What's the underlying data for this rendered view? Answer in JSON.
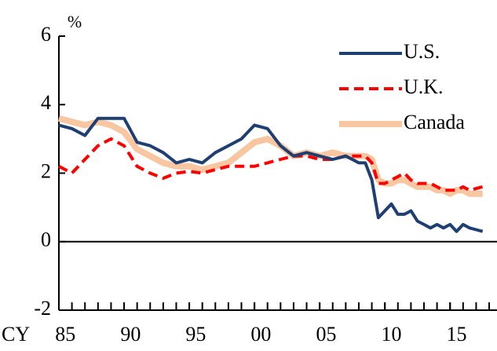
{
  "chart_data": {
    "type": "line",
    "y_unit_label": "%",
    "x_prefix_label": "CY",
    "x": [
      1985,
      1986,
      1987,
      1988,
      1989,
      1990,
      1991,
      1992,
      1993,
      1994,
      1995,
      1996,
      1997,
      1998,
      1999,
      2000,
      2001,
      2002,
      2003,
      2004,
      2005,
      2006,
      2007,
      2008,
      2008.5,
      2009,
      2009.5,
      2010,
      2010.5,
      2011,
      2011.5,
      2012,
      2012.5,
      2013,
      2013.5,
      2014,
      2014.5,
      2015,
      2015.5,
      2016,
      2016.5,
      2017,
      2017.5
    ],
    "series": [
      {
        "name": "U.S.",
        "color": "#1f3f73",
        "dash": "solid",
        "values": [
          3.4,
          3.3,
          3.1,
          3.6,
          3.6,
          3.6,
          2.9,
          2.8,
          2.6,
          2.3,
          2.4,
          2.3,
          2.6,
          2.8,
          3.0,
          3.4,
          3.3,
          2.8,
          2.5,
          2.6,
          2.5,
          2.4,
          2.5,
          2.3,
          2.3,
          1.8,
          0.7,
          0.9,
          1.1,
          0.8,
          0.8,
          0.9,
          0.6,
          0.5,
          0.4,
          0.5,
          0.4,
          0.5,
          0.3,
          0.5,
          0.4,
          0.35,
          0.3
        ]
      },
      {
        "name": "U.K.",
        "color": "#ff0000",
        "dash": "dashed",
        "values": [
          2.2,
          2.0,
          2.4,
          2.8,
          3.0,
          2.8,
          2.2,
          2.0,
          1.85,
          2.0,
          2.05,
          2.0,
          2.1,
          2.2,
          2.2,
          2.2,
          2.3,
          2.4,
          2.5,
          2.5,
          2.4,
          2.4,
          2.5,
          2.5,
          2.5,
          2.3,
          1.7,
          1.7,
          1.8,
          1.9,
          2.0,
          1.8,
          1.7,
          1.7,
          1.7,
          1.6,
          1.5,
          1.5,
          1.5,
          1.6,
          1.5,
          1.55,
          1.6
        ]
      },
      {
        "name": "Canada",
        "color": "#f8c6a0",
        "dash": "wide",
        "values": [
          3.6,
          3.5,
          3.4,
          3.5,
          3.4,
          3.2,
          2.7,
          2.5,
          2.3,
          2.2,
          2.2,
          2.1,
          2.2,
          2.3,
          2.6,
          2.9,
          3.0,
          2.8,
          2.5,
          2.6,
          2.5,
          2.6,
          2.5,
          2.5,
          2.5,
          2.4,
          1.8,
          1.7,
          1.7,
          1.8,
          1.8,
          1.7,
          1.6,
          1.6,
          1.6,
          1.5,
          1.5,
          1.4,
          1.5,
          1.5,
          1.4,
          1.4,
          1.4
        ]
      }
    ],
    "xlim": [
      1985,
      2018.6
    ],
    "xticks": [
      {
        "value": 1985,
        "label": "85"
      },
      {
        "value": 1990,
        "label": "90"
      },
      {
        "value": 1995,
        "label": "95"
      },
      {
        "value": 2000,
        "label": "00"
      },
      {
        "value": 2005,
        "label": "05"
      },
      {
        "value": 2010,
        "label": "10"
      },
      {
        "value": 2015,
        "label": "15"
      }
    ],
    "minor_xticks": [
      1986,
      1987,
      1988,
      1989,
      1990,
      1991,
      1992,
      1993,
      1994,
      1995,
      1996,
      1997,
      1998,
      1999,
      2000,
      2001,
      2002,
      2003,
      2004,
      2005,
      2006,
      2007,
      2008,
      2009,
      2010,
      2011,
      2012,
      2013,
      2014,
      2015,
      2016,
      2017,
      2018
    ],
    "ylim": [
      -2,
      6
    ],
    "yticks": [
      -2,
      0,
      2,
      4,
      6
    ],
    "legend": "upper right"
  }
}
